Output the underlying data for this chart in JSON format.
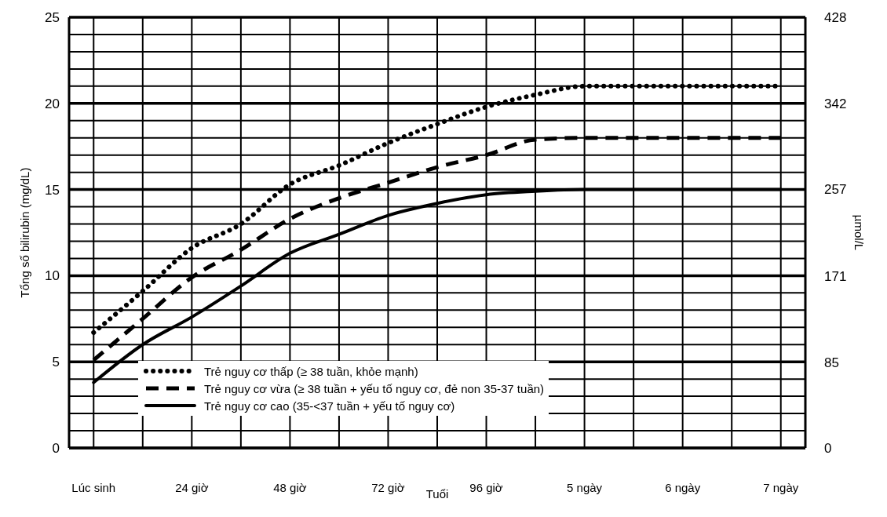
{
  "chart_data": {
    "type": "line",
    "xlabel": "Tuổi",
    "ylabel": "Tổng số bilirubin (mg/dL)",
    "y2label": "µmol/L",
    "categories": [
      "Lúc sinh",
      null,
      "24 giờ",
      null,
      "48 giờ",
      null,
      "72 giờ",
      null,
      "96 giờ",
      null,
      "5 ngày",
      null,
      "6 ngày",
      null,
      "7 ngày"
    ],
    "series": [
      {
        "name": "Trẻ nguy cơ thấp (≥ 38 tuần,  khỏe mạnh)",
        "color": "#000000",
        "line_style": "dotted",
        "values": [
          6.7,
          9.1,
          11.6,
          13,
          15.3,
          16.4,
          17.7,
          18.8,
          19.8,
          20.5,
          21,
          21,
          21,
          21,
          21
        ]
      },
      {
        "name": "Trẻ nguy cơ vừa (≥ 38 tuần + yếu tố nguy cơ, đẻ non 35-37 tuần)",
        "color": "#000000",
        "line_style": "dashed",
        "values": [
          5.1,
          7.5,
          9.9,
          11.5,
          13.3,
          14.5,
          15.4,
          16.3,
          17,
          17.9,
          18,
          18,
          18,
          18,
          18
        ]
      },
      {
        "name": "Trẻ nguy cơ cao (35-<37 tuần + yếu tố nguy cơ)",
        "color": "#000000",
        "line_style": "solid",
        "values": [
          3.8,
          6,
          7.6,
          9.4,
          11.3,
          12.4,
          13.5,
          14.2,
          14.7,
          14.9,
          15,
          15,
          15,
          15,
          15
        ]
      }
    ],
    "ylim": [
      0,
      25
    ],
    "yticks": [
      0,
      {
        "value": 1,
        "label": null
      },
      {
        "value": 2,
        "label": null
      },
      {
        "value": 3,
        "label": null
      },
      {
        "value": 4,
        "label": null
      },
      5,
      {
        "value": 6,
        "label": null
      },
      {
        "value": 7,
        "label": null
      },
      {
        "value": 8,
        "label": null
      },
      {
        "value": 9,
        "label": null
      },
      10,
      {
        "value": 11,
        "label": null
      },
      {
        "value": 12,
        "label": null
      },
      {
        "value": 13,
        "label": null
      },
      {
        "value": 14,
        "label": null
      },
      15,
      {
        "value": 16,
        "label": null
      },
      {
        "value": 17,
        "label": null
      },
      {
        "value": 18,
        "label": null
      },
      {
        "value": 19,
        "label": null
      },
      20,
      {
        "value": 21,
        "label": null
      },
      {
        "value": 22,
        "label": null
      },
      {
        "value": 23,
        "label": null
      },
      {
        "value": 24,
        "label": null
      },
      25
    ],
    "y2lim": [
      0,
      428
    ],
    "y2ticks": [
      0,
      85,
      171,
      257,
      342,
      428
    ],
    "grid": true,
    "legend": "bottom left",
    "marker": "none"
  }
}
